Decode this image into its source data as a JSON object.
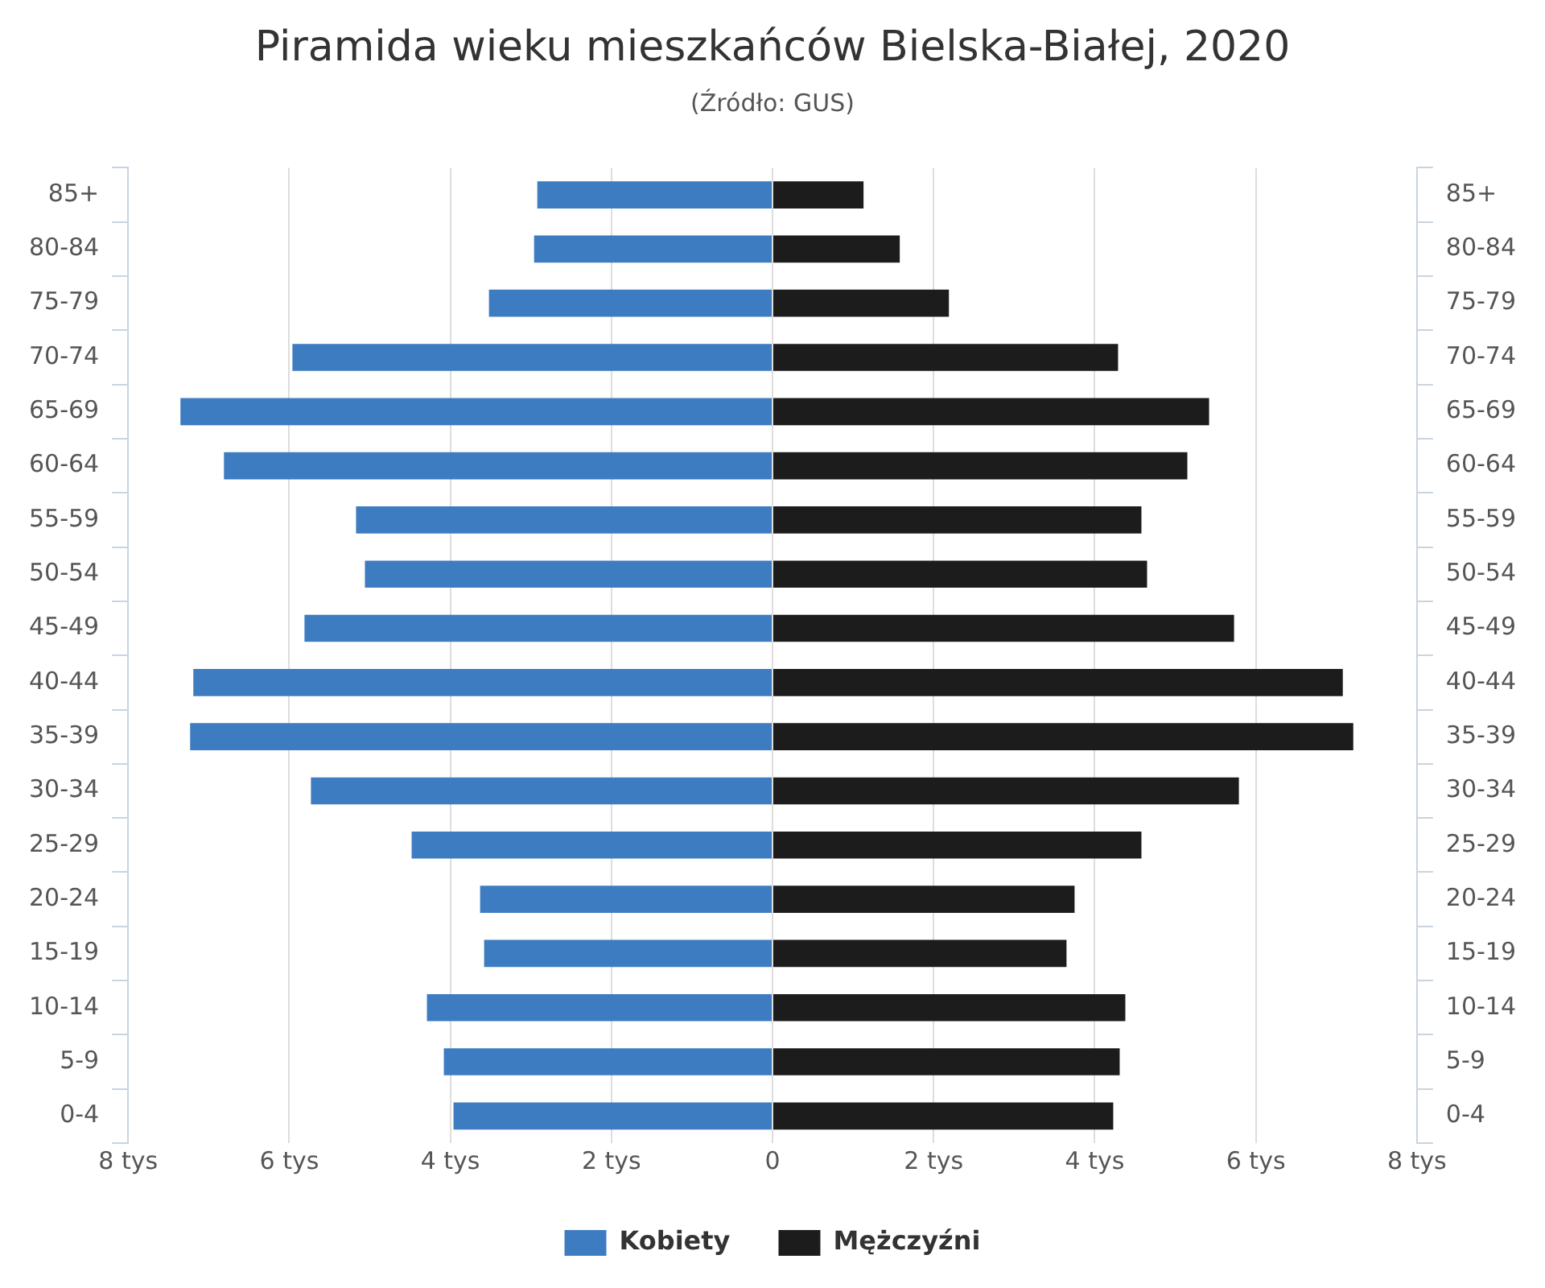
{
  "chart_data": {
    "type": "bar",
    "orientation": "horizontal",
    "stacked": true,
    "title": "Piramida wieku mieszkańców Bielska-Białej, 2020",
    "subtitle": "(Źródło: GUS)",
    "categories": [
      "85+",
      "80-84",
      "75-79",
      "70-74",
      "65-69",
      "60-64",
      "55-59",
      "50-54",
      "45-49",
      "40-44",
      "35-39",
      "30-34",
      "25-29",
      "20-24",
      "15-19",
      "10-14",
      "5-9",
      "0-4"
    ],
    "series": [
      {
        "name": "Kobiety",
        "color": "#3d7cc0",
        "values": [
          -2.92,
          -2.96,
          -3.52,
          -5.96,
          -7.35,
          -6.81,
          -5.17,
          -5.06,
          -5.81,
          -7.19,
          -7.23,
          -5.73,
          -4.48,
          -3.63,
          -3.58,
          -4.29,
          -4.08,
          -3.96
        ]
      },
      {
        "name": "Mężczyźni",
        "color": "#1c1c1c",
        "values": [
          1.13,
          1.58,
          2.19,
          4.29,
          5.42,
          5.15,
          4.58,
          4.65,
          5.73,
          7.08,
          7.21,
          5.79,
          4.58,
          3.75,
          3.65,
          4.38,
          4.31,
          4.23
        ]
      }
    ],
    "xlim": [
      -8,
      8
    ],
    "xticks": [
      {
        "value": -8,
        "label": "8 tys"
      },
      {
        "value": -6,
        "label": "6 tys"
      },
      {
        "value": -4,
        "label": "4 tys"
      },
      {
        "value": -2,
        "label": "2 tys"
      },
      0,
      {
        "value": 2,
        "label": "2 tys"
      },
      {
        "value": 4,
        "label": "4 tys"
      },
      {
        "value": 6,
        "label": "6 tys"
      },
      {
        "value": 8,
        "label": "8 tys"
      }
    ],
    "grid": "x",
    "legend": "bottom"
  }
}
